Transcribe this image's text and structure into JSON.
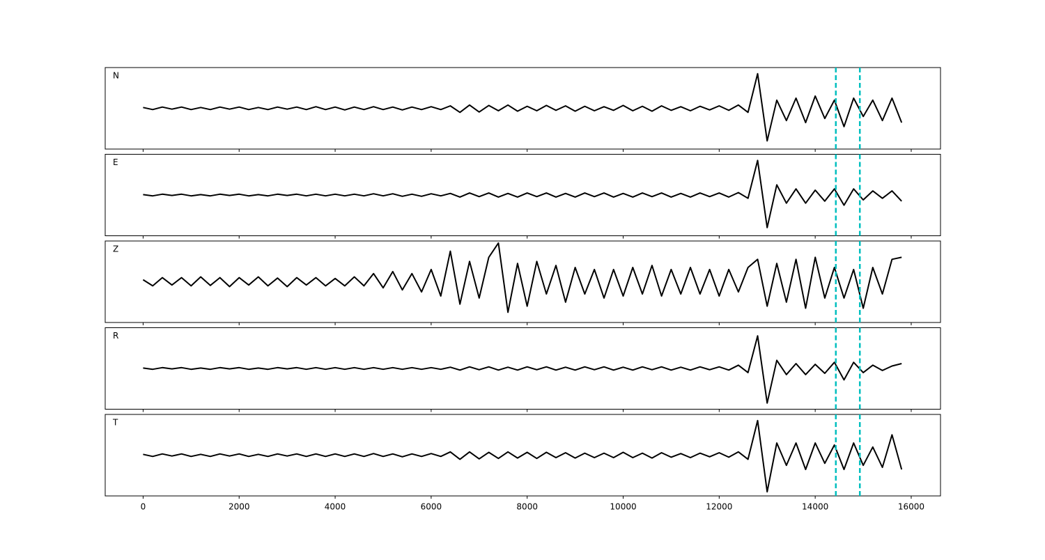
{
  "chart_data": {
    "type": "line",
    "x": [
      0,
      200,
      400,
      600,
      800,
      1000,
      1200,
      1400,
      1600,
      1800,
      2000,
      2200,
      2400,
      2600,
      2800,
      3000,
      3200,
      3400,
      3600,
      3800,
      4000,
      4200,
      4400,
      4600,
      4800,
      5000,
      5200,
      5400,
      5600,
      5800,
      6000,
      6200,
      6400,
      6600,
      6800,
      7000,
      7200,
      7400,
      7600,
      7800,
      8000,
      8200,
      8400,
      8600,
      8800,
      9000,
      9200,
      9400,
      9600,
      9800,
      10000,
      10200,
      10400,
      10600,
      10800,
      11000,
      11200,
      11400,
      11600,
      11800,
      12000,
      12200,
      12400,
      12600,
      12800,
      13000,
      13200,
      13400,
      13600,
      13800,
      14000,
      14200,
      14400,
      14600,
      14800,
      15000,
      15200,
      15400,
      15600,
      15800
    ],
    "xlim": [
      -790,
      16610
    ],
    "xticks": [
      0,
      2000,
      4000,
      6000,
      8000,
      10000,
      12000,
      14000,
      16000
    ],
    "ylim": [
      -1,
      1
    ],
    "color": "#000000",
    "vlines": [
      14430,
      14930
    ],
    "vline_color": "#00bfbf",
    "series": [
      {
        "name": "N",
        "values": [
          0.02,
          -0.03,
          0.03,
          -0.02,
          0.03,
          -0.03,
          0.02,
          -0.03,
          0.03,
          -0.02,
          0.03,
          -0.03,
          0.02,
          -0.03,
          0.03,
          -0.02,
          0.03,
          -0.03,
          0.04,
          -0.03,
          0.03,
          -0.04,
          0.03,
          -0.03,
          0.04,
          -0.03,
          0.03,
          -0.04,
          0.03,
          -0.03,
          0.04,
          -0.03,
          0.06,
          -0.1,
          0.08,
          -0.09,
          0.07,
          -0.06,
          0.08,
          -0.07,
          0.05,
          -0.06,
          0.07,
          -0.05,
          0.06,
          -0.07,
          0.05,
          -0.06,
          0.04,
          -0.05,
          0.07,
          -0.06,
          0.05,
          -0.07,
          0.06,
          -0.05,
          0.04,
          -0.06,
          0.05,
          -0.04,
          0.06,
          -0.05,
          0.08,
          -0.1,
          0.85,
          -0.8,
          0.2,
          -0.3,
          0.25,
          -0.35,
          0.3,
          -0.25,
          0.2,
          -0.45,
          0.25,
          -0.2,
          0.2,
          -0.3,
          0.25,
          -0.35
        ]
      },
      {
        "name": "E",
        "values": [
          0.01,
          -0.02,
          0.02,
          -0.01,
          0.02,
          -0.02,
          0.01,
          -0.02,
          0.02,
          -0.01,
          0.02,
          -0.02,
          0.01,
          -0.02,
          0.02,
          -0.01,
          0.02,
          -0.02,
          0.02,
          -0.02,
          0.02,
          -0.02,
          0.02,
          -0.02,
          0.03,
          -0.02,
          0.03,
          -0.03,
          0.02,
          -0.03,
          0.03,
          -0.02,
          0.04,
          -0.05,
          0.05,
          -0.04,
          0.05,
          -0.05,
          0.04,
          -0.05,
          0.05,
          -0.04,
          0.05,
          -0.05,
          0.04,
          -0.05,
          0.05,
          -0.04,
          0.05,
          -0.05,
          0.04,
          -0.05,
          0.05,
          -0.04,
          0.05,
          -0.05,
          0.04,
          -0.05,
          0.05,
          -0.04,
          0.05,
          -0.05,
          0.06,
          -0.08,
          0.85,
          -0.8,
          0.25,
          -0.2,
          0.15,
          -0.2,
          0.12,
          -0.15,
          0.15,
          -0.25,
          0.15,
          -0.12,
          0.1,
          -0.08,
          0.1,
          -0.15
        ]
      },
      {
        "name": "Z",
        "values": [
          0.05,
          -0.1,
          0.1,
          -0.08,
          0.1,
          -0.1,
          0.12,
          -0.09,
          0.1,
          -0.12,
          0.1,
          -0.08,
          0.12,
          -0.1,
          0.09,
          -0.12,
          0.1,
          -0.08,
          0.1,
          -0.1,
          0.08,
          -0.1,
          0.12,
          -0.1,
          0.2,
          -0.15,
          0.25,
          -0.2,
          0.2,
          -0.25,
          0.3,
          -0.35,
          0.75,
          -0.55,
          0.5,
          -0.4,
          0.6,
          0.95,
          -0.75,
          0.45,
          -0.6,
          0.5,
          -0.3,
          0.4,
          -0.5,
          0.35,
          -0.3,
          0.3,
          -0.4,
          0.3,
          -0.35,
          0.35,
          -0.3,
          0.4,
          -0.35,
          0.3,
          -0.3,
          0.35,
          -0.3,
          0.3,
          -0.35,
          0.3,
          -0.25,
          0.35,
          0.55,
          -0.6,
          0.45,
          -0.5,
          0.55,
          -0.65,
          0.6,
          -0.4,
          0.35,
          -0.4,
          0.3,
          -0.65,
          0.35,
          -0.3,
          0.55,
          0.6
        ]
      },
      {
        "name": "R",
        "values": [
          0.01,
          -0.02,
          0.02,
          -0.01,
          0.02,
          -0.02,
          0.01,
          -0.02,
          0.02,
          -0.01,
          0.02,
          -0.02,
          0.01,
          -0.02,
          0.02,
          -0.01,
          0.02,
          -0.02,
          0.02,
          -0.02,
          0.02,
          -0.02,
          0.02,
          -0.02,
          0.02,
          -0.02,
          0.02,
          -0.02,
          0.02,
          -0.02,
          0.02,
          -0.02,
          0.03,
          -0.04,
          0.04,
          -0.03,
          0.04,
          -0.04,
          0.03,
          -0.04,
          0.04,
          -0.03,
          0.04,
          -0.04,
          0.03,
          -0.04,
          0.04,
          -0.03,
          0.04,
          -0.04,
          0.03,
          -0.04,
          0.04,
          -0.03,
          0.04,
          -0.04,
          0.03,
          -0.04,
          0.04,
          -0.03,
          0.04,
          -0.04,
          0.08,
          -0.1,
          0.8,
          -0.85,
          0.2,
          -0.15,
          0.12,
          -0.15,
          0.1,
          -0.12,
          0.15,
          -0.28,
          0.15,
          -0.1,
          0.08,
          -0.05,
          0.06,
          0.12
        ]
      },
      {
        "name": "T",
        "values": [
          0.02,
          -0.03,
          0.03,
          -0.02,
          0.03,
          -0.03,
          0.02,
          -0.03,
          0.03,
          -0.02,
          0.03,
          -0.03,
          0.02,
          -0.03,
          0.03,
          -0.02,
          0.03,
          -0.03,
          0.03,
          -0.03,
          0.03,
          -0.03,
          0.03,
          -0.03,
          0.04,
          -0.03,
          0.03,
          -0.04,
          0.03,
          -0.03,
          0.04,
          -0.03,
          0.08,
          -0.1,
          0.08,
          -0.09,
          0.07,
          -0.08,
          0.08,
          -0.07,
          0.07,
          -0.08,
          0.07,
          -0.06,
          0.06,
          -0.07,
          0.05,
          -0.06,
          0.05,
          -0.06,
          0.07,
          -0.06,
          0.05,
          -0.07,
          0.06,
          -0.05,
          0.04,
          -0.06,
          0.05,
          -0.04,
          0.06,
          -0.05,
          0.08,
          -0.1,
          0.85,
          -0.9,
          0.3,
          -0.25,
          0.3,
          -0.35,
          0.3,
          -0.2,
          0.25,
          -0.35,
          0.3,
          -0.25,
          0.2,
          -0.3,
          0.5,
          -0.35
        ]
      }
    ]
  }
}
